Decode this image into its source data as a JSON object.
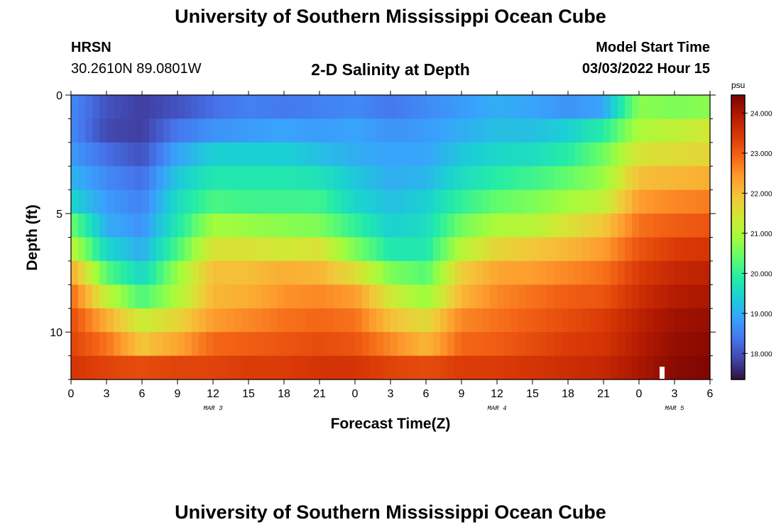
{
  "title_top": "University of Southern Mississippi Ocean Cube",
  "title_bottom": "University of Southern Mississippi Ocean Cube",
  "station": {
    "name": "HRSN",
    "coords": "30.2610N  89.0801W"
  },
  "plot_title": "2-D Salinity at Depth",
  "model": {
    "label": "Model Start Time",
    "value": "03/03/2022 Hour 15"
  },
  "colorbar": {
    "unit": "psu",
    "ticks": [
      "18.000",
      "19.000",
      "20.000",
      "21.000",
      "22.000",
      "23.000",
      "24.000"
    ],
    "tick_values": [
      18,
      19,
      20,
      21,
      22,
      23,
      24
    ],
    "range": [
      17.35,
      24.45
    ],
    "colors": [
      "#30123b",
      "#4145ab",
      "#4675ed",
      "#39a2fc",
      "#1bcfd4",
      "#24eca6",
      "#61fc6c",
      "#a4fc3b",
      "#d1e834",
      "#f3c63a",
      "#fe9b2d",
      "#f36315",
      "#d93806",
      "#b11901",
      "#7a0403"
    ]
  },
  "chart_data": {
    "type": "heatmap",
    "title": "2-D Salinity at Depth",
    "xlabel": "Forecast Time(Z)",
    "ylabel": "Depth (ft)",
    "x_tick_labels": [
      "0",
      "3",
      "6",
      "9",
      "12",
      "15",
      "18",
      "21",
      "0",
      "3",
      "6",
      "9",
      "12",
      "15",
      "18",
      "21",
      "0",
      "3",
      "6"
    ],
    "x_range_hours": [
      0,
      54
    ],
    "date_labels": [
      {
        "label": "MAR 3",
        "hour": 12
      },
      {
        "label": "MAR 4",
        "hour": 36
      },
      {
        "label": "MAR 5",
        "hour": 51
      }
    ],
    "y_tick_labels": [
      "0",
      "5",
      "10"
    ],
    "y_tick_values": [
      0,
      5,
      10
    ],
    "y_range": [
      0,
      12
    ],
    "depth_levels": 12,
    "value_unit": "psu",
    "profile_hours": [
      0,
      3,
      6,
      9,
      12,
      15,
      18,
      21,
      24,
      27,
      30,
      33,
      36,
      39,
      42,
      45,
      48,
      51,
      54
    ],
    "profiles": [
      [
        18.6,
        18.6,
        18.8,
        19.1,
        19.5,
        20.5,
        21.2,
        22.3,
        22.9,
        23.2,
        23.3,
        23.5
      ],
      [
        18.0,
        17.9,
        18.3,
        18.6,
        18.8,
        19.0,
        19.5,
        20.3,
        21.2,
        22.2,
        22.8,
        23.3
      ],
      [
        17.8,
        17.8,
        18.0,
        18.3,
        18.5,
        18.7,
        19.0,
        19.5,
        20.2,
        21.3,
        21.9,
        23.2
      ],
      [
        18.0,
        18.4,
        18.9,
        19.3,
        19.6,
        19.8,
        20.2,
        20.8,
        21.0,
        21.7,
        22.3,
        23.3
      ],
      [
        18.3,
        18.7,
        19.4,
        19.8,
        20.2,
        20.9,
        21.5,
        22.0,
        22.1,
        22.4,
        22.9,
        23.3
      ],
      [
        18.5,
        18.8,
        19.4,
        19.8,
        20.1,
        20.8,
        21.5,
        22.0,
        22.2,
        22.6,
        23.0,
        23.4
      ],
      [
        18.4,
        18.9,
        19.4,
        19.8,
        20.1,
        20.7,
        21.4,
        22.2,
        22.5,
        22.8,
        23.1,
        23.4
      ],
      [
        18.5,
        18.8,
        19.2,
        19.7,
        20.1,
        20.6,
        21.5,
        22.1,
        22.6,
        22.9,
        23.2,
        23.5
      ],
      [
        18.6,
        18.9,
        19.0,
        19.3,
        19.5,
        20.0,
        20.6,
        21.6,
        22.4,
        22.8,
        23.1,
        23.5
      ],
      [
        18.4,
        18.7,
        18.9,
        19.0,
        19.2,
        19.4,
        19.8,
        20.6,
        21.4,
        22.0,
        22.6,
        23.3
      ],
      [
        18.6,
        18.8,
        18.9,
        19.1,
        19.4,
        19.6,
        19.8,
        20.3,
        20.8,
        21.6,
        22.1,
        23.2
      ],
      [
        18.8,
        19.0,
        19.3,
        19.6,
        20.0,
        20.5,
        21.1,
        21.8,
        22.1,
        22.6,
        22.9,
        23.4
      ],
      [
        19.0,
        19.2,
        19.5,
        19.9,
        20.4,
        21.0,
        21.7,
        22.3,
        22.6,
        22.8,
        23.0,
        23.4
      ],
      [
        18.9,
        19.2,
        19.6,
        20.1,
        20.6,
        21.1,
        21.9,
        22.4,
        22.8,
        23.0,
        23.2,
        23.5
      ],
      [
        18.7,
        19.4,
        19.9,
        20.4,
        20.9,
        21.5,
        22.1,
        22.6,
        23.0,
        23.2,
        23.4,
        23.6
      ],
      [
        18.9,
        19.9,
        20.5,
        20.8,
        21.2,
        21.9,
        22.4,
        22.8,
        23.1,
        23.4,
        23.5,
        23.7
      ],
      [
        20.7,
        21.0,
        21.5,
        22.0,
        22.4,
        22.8,
        23.1,
        23.4,
        23.6,
        23.8,
        23.9,
        24.0
      ],
      [
        20.6,
        21.2,
        21.6,
        22.1,
        22.6,
        23.0,
        23.4,
        23.7,
        23.9,
        24.1,
        24.2,
        24.3
      ],
      [
        20.7,
        21.4,
        21.7,
        22.2,
        22.7,
        23.1,
        23.5,
        23.8,
        24.0,
        24.2,
        24.3,
        24.4
      ]
    ]
  }
}
